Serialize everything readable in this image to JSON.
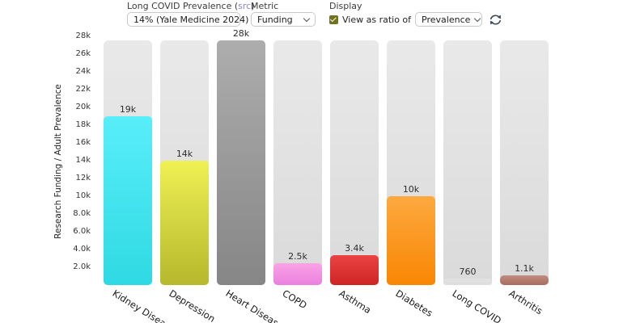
{
  "controls": {
    "prevalence": {
      "label_prefix": "Long COVID Prevalence (",
      "link_text": "src",
      "label_suffix": ")",
      "value": "14% (Yale Medicine 2024)"
    },
    "metric": {
      "label": "Metric",
      "value": "Funding"
    },
    "display": {
      "label": "Display",
      "checkbox_label": "View as ratio of",
      "checkbox_checked": true,
      "ratio_value": "Prevalence"
    }
  },
  "colors": {
    "link": "#8484da",
    "checkbox": "#72721b",
    "refresh_icon": "#3a4856",
    "track": "#e2e2e2",
    "value_label": "#2d2d2d"
  },
  "chart_data": {
    "type": "bar",
    "title": "",
    "xlabel": "",
    "ylabel": "Research Funding / Adult Prevalence",
    "categories": [
      "Kidney Disease",
      "Depression",
      "Heart Disease",
      "COPD",
      "Asthma",
      "Diabetes",
      "Long COVID",
      "Arthritis"
    ],
    "values": [
      19000,
      14000,
      28000,
      2500,
      3400,
      10000,
      760,
      1100
    ],
    "value_labels": [
      "19k",
      "14k",
      "28k",
      "2.5k",
      "3.4k",
      "10k",
      "760",
      "1.1k"
    ],
    "bar_gradients": [
      [
        "#58eefa",
        "#2fd9e3"
      ],
      [
        "#eff053",
        "#b6b82d"
      ],
      [
        "#adadad",
        "#868686"
      ],
      [
        "#f9a3e5",
        "#eb80df"
      ],
      [
        "#eb4343",
        "#ce2424"
      ],
      [
        "#fca93f",
        "#f98603"
      ],
      [
        "#e2e2e2",
        "#dedede"
      ],
      [
        "#c18c80",
        "#a96b5f"
      ]
    ],
    "ytick_values": [
      2000,
      4000,
      6000,
      8000,
      10000,
      12000,
      14000,
      16000,
      18000,
      20000,
      22000,
      24000,
      26000,
      28000
    ],
    "ytick_labels": [
      "2.0k",
      "4.0k",
      "6.0k",
      "8.0k",
      "10k",
      "12k",
      "14k",
      "16k",
      "18k",
      "20k",
      "22k",
      "24k",
      "26k",
      "28k"
    ],
    "ylim": [
      0,
      28000
    ],
    "grid": false,
    "legend": null
  }
}
